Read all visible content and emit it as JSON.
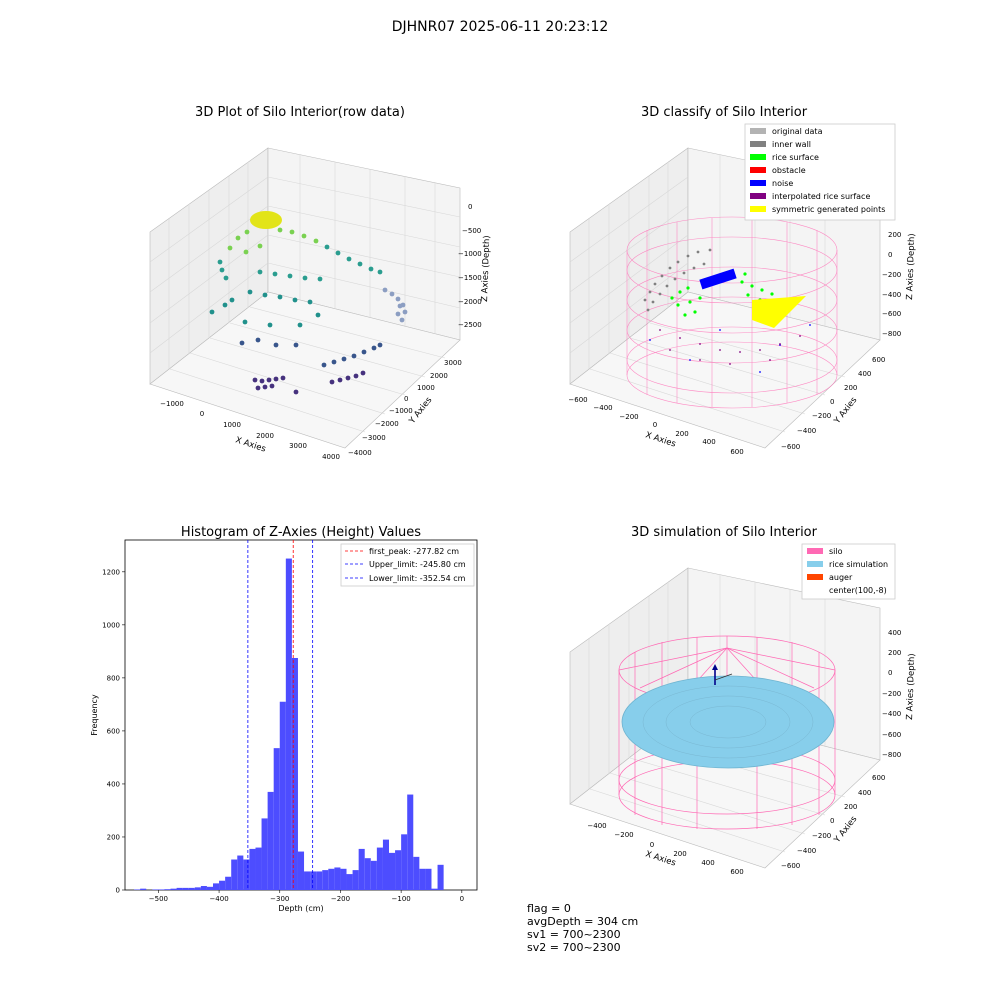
{
  "suptitle": "DJHNR07 2025-06-11 20:23:12",
  "colors": {
    "original": "#b3b3b3",
    "inner_wall": "#808080",
    "rice_surface": "#00ff00",
    "obstacle": "#ff0000",
    "noise": "#0000ff",
    "interpolated": "#800080",
    "symmetric": "#ffff00",
    "silo": "#ff69b4",
    "rice_sim": "#87ceeb",
    "auger": "#ff4500",
    "hist_bar": "#4d4dff"
  },
  "panel1": {
    "title": "3D Plot of Silo Interior(row data)",
    "xlabel": "X Axies",
    "ylabel": "Y Axies",
    "zlabel": "Z Axies (Depth)",
    "xticks": [
      "−1000",
      "0",
      "1000",
      "2000",
      "3000",
      "4000"
    ],
    "yticks": [
      "3000",
      "2000",
      "1000",
      "0",
      "−1000",
      "−2000",
      "−3000",
      "−4000"
    ],
    "zticks": [
      "0",
      "−500",
      "−1000",
      "−1500",
      "−2000",
      "−2500"
    ]
  },
  "panel2": {
    "title": "3D classify of Silo Interior",
    "xlabel": "X Axies",
    "ylabel": "Y Axies",
    "zlabel": "Z Axies (Depth)",
    "xticks": [
      "−600",
      "−400",
      "−200",
      "0",
      "200",
      "400",
      "600"
    ],
    "yticks": [
      "600",
      "400",
      "200",
      "0",
      "−200",
      "−400",
      "−600"
    ],
    "zticks": [
      "200",
      "0",
      "−200",
      "−400",
      "−600",
      "−800"
    ],
    "legend": [
      {
        "label": "original data",
        "color_key": "original"
      },
      {
        "label": "inner wall",
        "color_key": "inner_wall"
      },
      {
        "label": "rice surface",
        "color_key": "rice_surface"
      },
      {
        "label": "obstacle",
        "color_key": "obstacle"
      },
      {
        "label": "noise",
        "color_key": "noise"
      },
      {
        "label": "interpolated rice surface",
        "color_key": "interpolated"
      },
      {
        "label": "symmetric generated points",
        "color_key": "symmetric"
      }
    ]
  },
  "panel4": {
    "title": "3D simulation of Silo Interior",
    "xlabel": "X Axies",
    "ylabel": "Y Axies",
    "zlabel": "Z Axies (Depth)",
    "xticks": [
      "−400",
      "−200",
      "0",
      "200",
      "400",
      "600"
    ],
    "yticks": [
      "600",
      "400",
      "200",
      "0",
      "−200",
      "−400",
      "−600"
    ],
    "zticks": [
      "400",
      "200",
      "0",
      "−200",
      "−400",
      "−600",
      "−800"
    ],
    "legend": [
      {
        "label": "silo",
        "color_key": "silo"
      },
      {
        "label": "rice simulation",
        "color_key": "rice_sim"
      },
      {
        "label": "auger",
        "color_key": "auger"
      },
      {
        "label": "center(100,-8)",
        "color_key": ""
      }
    ]
  },
  "status": {
    "flag": "flag = 0",
    "avg_depth": "avgDepth = 304 cm",
    "sv1": "sv1 = 700~2300",
    "sv2": "sv2 = 700~2300"
  },
  "chart_data": [
    {
      "type": "histogram",
      "title": "Histogram of Z-Axies (Height) Values",
      "xlabel": "Depth (cm)",
      "ylabel": "Frequency",
      "xlim": [
        -555,
        25
      ],
      "ylim": [
        0,
        1320
      ],
      "xticks": [
        -500,
        -400,
        -300,
        -200,
        -100,
        0
      ],
      "yticks": [
        0,
        200,
        400,
        600,
        800,
        1000,
        1200
      ],
      "bin_width": 10,
      "bins": [
        [
          -540,
          2
        ],
        [
          -530,
          5
        ],
        [
          -520,
          0
        ],
        [
          -510,
          2
        ],
        [
          -500,
          2
        ],
        [
          -490,
          3
        ],
        [
          -480,
          5
        ],
        [
          -470,
          8
        ],
        [
          -460,
          8
        ],
        [
          -450,
          8
        ],
        [
          -440,
          10
        ],
        [
          -430,
          15
        ],
        [
          -420,
          12
        ],
        [
          -410,
          25
        ],
        [
          -400,
          35
        ],
        [
          -390,
          50
        ],
        [
          -380,
          115
        ],
        [
          -370,
          130
        ],
        [
          -360,
          115
        ],
        [
          -350,
          155
        ],
        [
          -340,
          160
        ],
        [
          -330,
          270
        ],
        [
          -320,
          370
        ],
        [
          -310,
          535
        ],
        [
          -300,
          710
        ],
        [
          -290,
          1250
        ],
        [
          -280,
          875
        ],
        [
          -270,
          145
        ],
        [
          -260,
          70
        ],
        [
          -250,
          70
        ],
        [
          -240,
          70
        ],
        [
          -230,
          75
        ],
        [
          -220,
          80
        ],
        [
          -210,
          85
        ],
        [
          -200,
          80
        ],
        [
          -190,
          60
        ],
        [
          -180,
          75
        ],
        [
          -170,
          155
        ],
        [
          -160,
          120
        ],
        [
          -150,
          110
        ],
        [
          -140,
          160
        ],
        [
          -130,
          190
        ],
        [
          -120,
          140
        ],
        [
          -110,
          150
        ],
        [
          -100,
          210
        ],
        [
          -90,
          360
        ],
        [
          -80,
          125
        ],
        [
          -70,
          80
        ],
        [
          -60,
          80
        ],
        [
          -50,
          5
        ],
        [
          -40,
          95
        ]
      ],
      "lines": [
        {
          "label": "first_peak: -277.82 cm",
          "x": -277.82,
          "color": "#ff0000"
        },
        {
          "label": "Upper_limit: -245.80 cm",
          "x": -245.8,
          "color": "#0000ff"
        },
        {
          "label": "Lower_limit: -352.54 cm",
          "x": -352.54,
          "color": "#0000ff"
        }
      ],
      "legend_position": "top-right"
    }
  ]
}
